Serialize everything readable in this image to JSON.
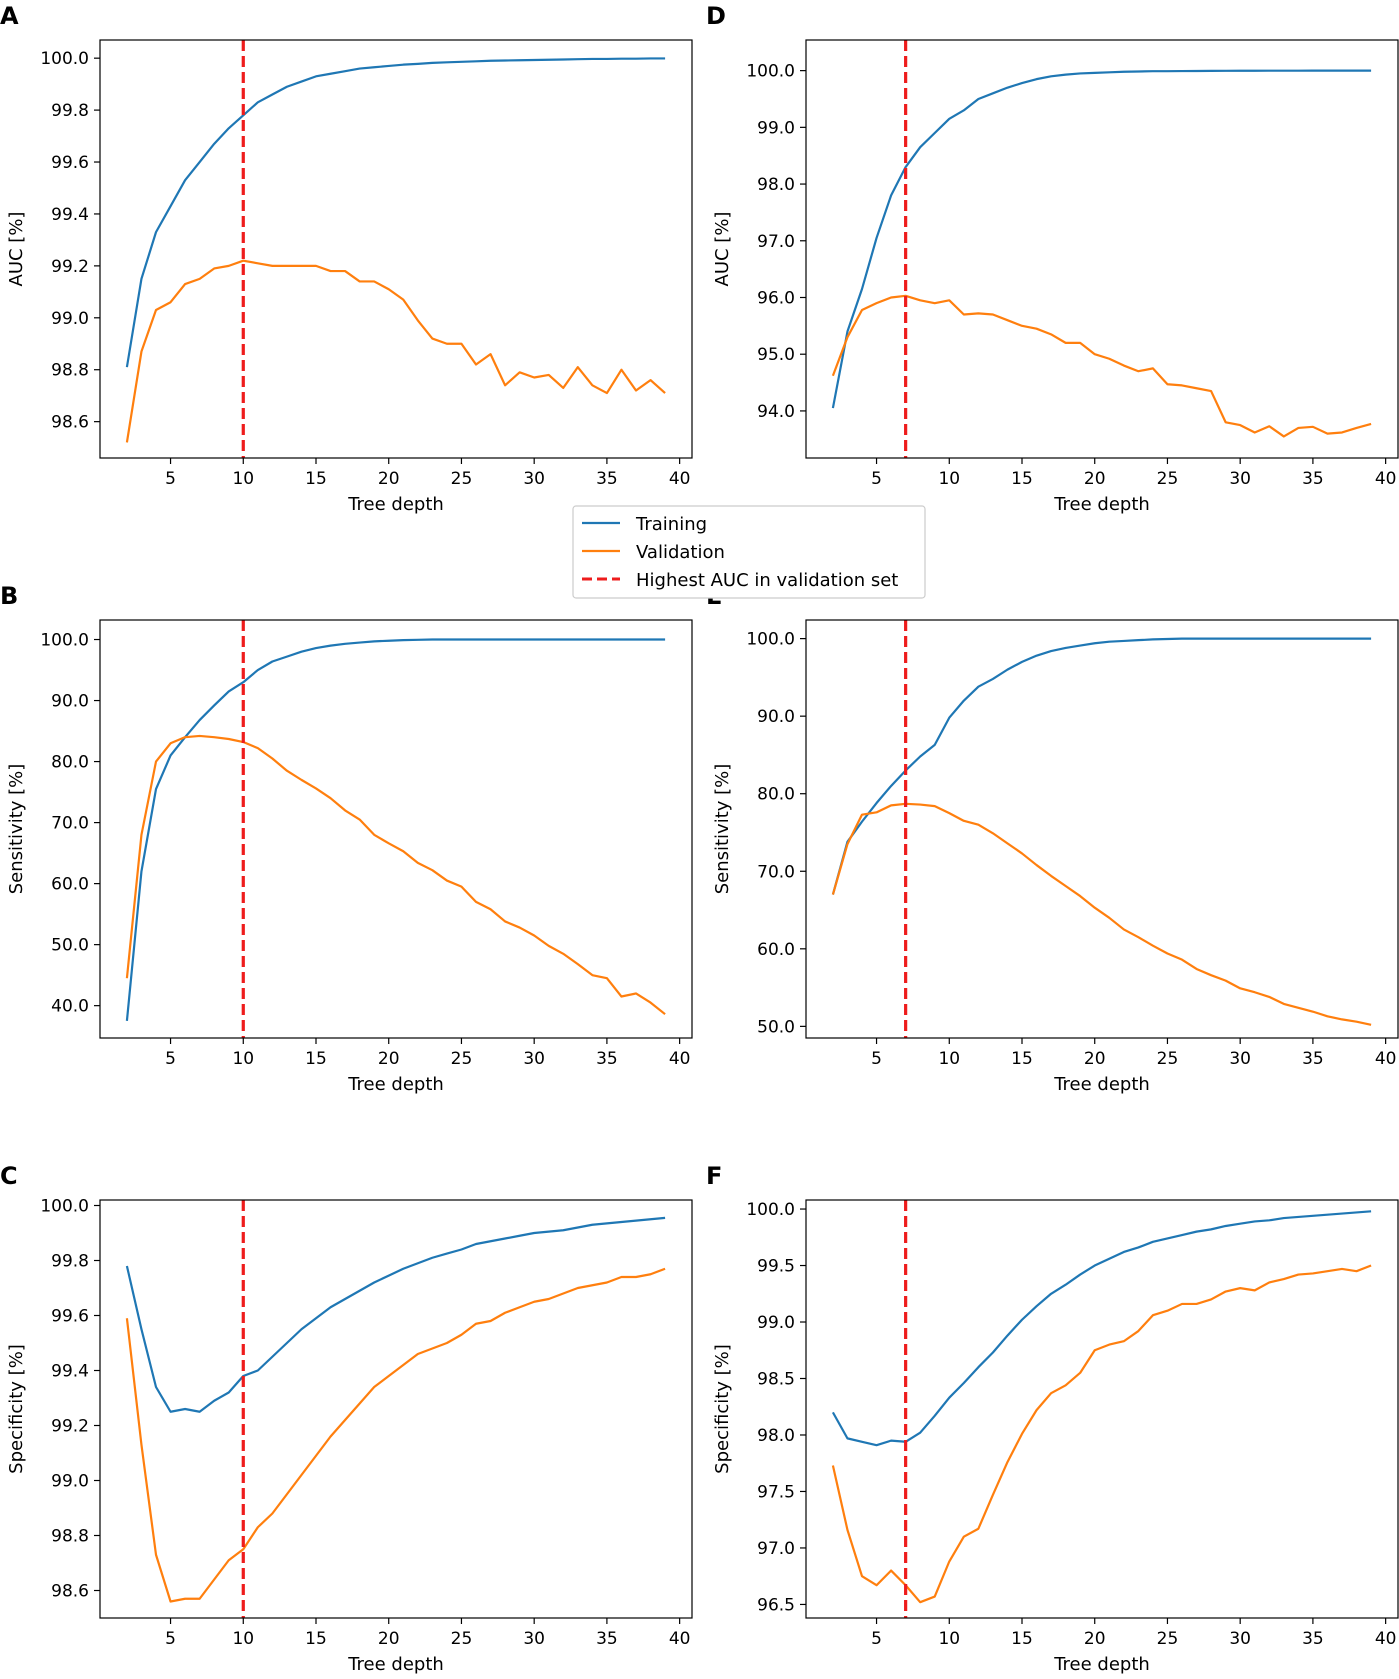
{
  "legend": {
    "placement": "center",
    "entries": [
      {
        "label": "Training",
        "color": "#1f77b4",
        "style": "solid"
      },
      {
        "label": "Validation",
        "color": "#ff7f0e",
        "style": "solid"
      },
      {
        "label": "Highest AUC in validation set",
        "color": "#ee1c1c",
        "style": "dashed"
      }
    ]
  },
  "chart_data": [
    {
      "panel": "A",
      "type": "line",
      "xlabel": "Tree depth",
      "ylabel": "AUC [%]",
      "xlim": [
        0.15,
        40.85
      ],
      "ylim": [
        98.46,
        100.07
      ],
      "xticks": [
        5,
        10,
        15,
        20,
        25,
        30,
        35,
        40
      ],
      "yticks": [
        98.6,
        98.8,
        99.0,
        99.2,
        99.4,
        99.6,
        99.8,
        100.0
      ],
      "ytick_labels": [
        "98.6",
        "98.8",
        "99.0",
        "99.2",
        "99.4",
        "99.6",
        "99.8",
        "100.0"
      ],
      "vline": 10,
      "x": [
        2,
        3,
        4,
        5,
        6,
        7,
        8,
        9,
        10,
        11,
        12,
        13,
        14,
        15,
        16,
        17,
        18,
        19,
        20,
        21,
        22,
        23,
        24,
        25,
        26,
        27,
        28,
        29,
        30,
        31,
        32,
        33,
        34,
        35,
        36,
        37,
        38,
        39
      ],
      "series": [
        {
          "name": "Training",
          "values": [
            98.81,
            99.15,
            99.33,
            99.43,
            99.53,
            99.6,
            99.67,
            99.73,
            99.78,
            99.83,
            99.86,
            99.89,
            99.91,
            99.93,
            99.94,
            99.95,
            99.96,
            99.965,
            99.97,
            99.975,
            99.978,
            99.982,
            99.984,
            99.986,
            99.988,
            99.99,
            99.991,
            99.992,
            99.993,
            99.994,
            99.995,
            99.996,
            99.997,
            99.997,
            99.998,
            99.998,
            99.999,
            99.999
          ]
        },
        {
          "name": "Validation",
          "values": [
            98.52,
            98.87,
            99.03,
            99.06,
            99.13,
            99.15,
            99.19,
            99.2,
            99.22,
            99.21,
            99.2,
            99.2,
            99.2,
            99.2,
            99.18,
            99.18,
            99.14,
            99.14,
            99.11,
            99.07,
            98.99,
            98.92,
            98.9,
            98.9,
            98.82,
            98.86,
            98.74,
            98.79,
            98.77,
            98.78,
            98.73,
            98.81,
            98.74,
            98.71,
            98.8,
            98.72,
            98.76,
            98.71
          ]
        }
      ]
    },
    {
      "panel": "B",
      "type": "line",
      "xlabel": "Tree depth",
      "ylabel": "Sensitivity [%]",
      "xlim": [
        0.15,
        40.85
      ],
      "ylim": [
        34.7,
        103.2
      ],
      "xticks": [
        5,
        10,
        15,
        20,
        25,
        30,
        35,
        40
      ],
      "yticks": [
        40,
        50,
        60,
        70,
        80,
        90,
        100
      ],
      "ytick_labels": [
        "40.0",
        "50.0",
        "60.0",
        "70.0",
        "80.0",
        "90.0",
        "100.0"
      ],
      "vline": 10,
      "x": [
        2,
        3,
        4,
        5,
        6,
        7,
        8,
        9,
        10,
        11,
        12,
        13,
        14,
        15,
        16,
        17,
        18,
        19,
        20,
        21,
        22,
        23,
        24,
        25,
        26,
        27,
        28,
        29,
        30,
        31,
        32,
        33,
        34,
        35,
        36,
        37,
        38,
        39
      ],
      "series": [
        {
          "name": "Training",
          "values": [
            37.5,
            62.0,
            75.5,
            81.0,
            84.0,
            86.8,
            89.2,
            91.5,
            93.0,
            95.0,
            96.4,
            97.2,
            98.0,
            98.6,
            99.0,
            99.3,
            99.5,
            99.7,
            99.8,
            99.9,
            99.95,
            100,
            100,
            100,
            100,
            100,
            100,
            100,
            100,
            100,
            100,
            100,
            100,
            100,
            100,
            100,
            100,
            100
          ]
        },
        {
          "name": "Validation",
          "values": [
            44.5,
            68.0,
            80.0,
            83.0,
            84.0,
            84.2,
            84.0,
            83.7,
            83.2,
            82.2,
            80.5,
            78.5,
            77.0,
            75.6,
            74.0,
            72.0,
            70.5,
            68.0,
            66.6,
            65.3,
            63.4,
            62.2,
            60.5,
            59.5,
            57.0,
            55.8,
            53.8,
            52.8,
            51.5,
            49.8,
            48.5,
            46.8,
            45.0,
            44.5,
            41.5,
            42.0,
            40.5,
            38.6
          ]
        }
      ]
    },
    {
      "panel": "C",
      "type": "line",
      "xlabel": "Tree depth",
      "ylabel": "Specificity [%]",
      "xlim": [
        0.15,
        40.85
      ],
      "ylim": [
        98.5,
        100.02
      ],
      "xticks": [
        5,
        10,
        15,
        20,
        25,
        30,
        35,
        40
      ],
      "yticks": [
        98.6,
        98.8,
        99.0,
        99.2,
        99.4,
        99.6,
        99.8,
        100.0
      ],
      "ytick_labels": [
        "98.6",
        "98.8",
        "99.0",
        "99.2",
        "99.4",
        "99.6",
        "99.8",
        "100.0"
      ],
      "vline": 10,
      "x": [
        2,
        3,
        4,
        5,
        6,
        7,
        8,
        9,
        10,
        11,
        12,
        13,
        14,
        15,
        16,
        17,
        18,
        19,
        20,
        21,
        22,
        23,
        24,
        25,
        26,
        27,
        28,
        29,
        30,
        31,
        32,
        33,
        34,
        35,
        36,
        37,
        38,
        39
      ],
      "series": [
        {
          "name": "Training",
          "values": [
            99.78,
            99.55,
            99.34,
            99.25,
            99.26,
            99.25,
            99.29,
            99.32,
            99.38,
            99.4,
            99.45,
            99.5,
            99.55,
            99.59,
            99.63,
            99.66,
            99.69,
            99.72,
            99.745,
            99.77,
            99.79,
            99.81,
            99.825,
            99.84,
            99.86,
            99.87,
            99.88,
            99.89,
            99.9,
            99.905,
            99.91,
            99.92,
            99.93,
            99.935,
            99.94,
            99.945,
            99.95,
            99.955
          ]
        },
        {
          "name": "Validation",
          "values": [
            99.59,
            99.13,
            98.73,
            98.56,
            98.57,
            98.57,
            98.64,
            98.71,
            98.75,
            98.83,
            98.88,
            98.95,
            99.02,
            99.09,
            99.16,
            99.22,
            99.28,
            99.34,
            99.38,
            99.42,
            99.46,
            99.48,
            99.5,
            99.53,
            99.57,
            99.58,
            99.61,
            99.63,
            99.65,
            99.66,
            99.68,
            99.7,
            99.71,
            99.72,
            99.74,
            99.74,
            99.75,
            99.77
          ]
        }
      ]
    },
    {
      "panel": "D",
      "type": "line",
      "xlabel": "Tree depth",
      "ylabel": "AUC [%]",
      "xlim": [
        0.15,
        40.85
      ],
      "ylim": [
        93.17,
        100.54
      ],
      "xticks": [
        5,
        10,
        15,
        20,
        25,
        30,
        35,
        40
      ],
      "yticks": [
        94,
        95,
        96,
        97,
        98,
        99,
        100
      ],
      "ytick_labels": [
        "94.0",
        "95.0",
        "96.0",
        "97.0",
        "98.0",
        "99.0",
        "100.0"
      ],
      "vline": 7,
      "x": [
        2,
        3,
        4,
        5,
        6,
        7,
        8,
        9,
        10,
        11,
        12,
        13,
        14,
        15,
        16,
        17,
        18,
        19,
        20,
        21,
        22,
        23,
        24,
        25,
        26,
        27,
        28,
        29,
        30,
        31,
        32,
        33,
        34,
        35,
        36,
        37,
        38,
        39
      ],
      "series": [
        {
          "name": "Training",
          "values": [
            94.05,
            95.4,
            96.15,
            97.05,
            97.8,
            98.3,
            98.65,
            98.9,
            99.15,
            99.3,
            99.5,
            99.6,
            99.7,
            99.78,
            99.85,
            99.9,
            99.93,
            99.95,
            99.96,
            99.97,
            99.98,
            99.985,
            99.99,
            99.99,
            99.992,
            99.994,
            99.996,
            99.997,
            99.998,
            99.998,
            99.999,
            99.999,
            99.999,
            100,
            100,
            100,
            100,
            100
          ]
        },
        {
          "name": "Validation",
          "values": [
            94.62,
            95.3,
            95.78,
            95.9,
            96.0,
            96.03,
            95.95,
            95.9,
            95.95,
            95.7,
            95.72,
            95.7,
            95.6,
            95.5,
            95.45,
            95.35,
            95.2,
            95.2,
            95.0,
            94.92,
            94.8,
            94.7,
            94.75,
            94.47,
            94.45,
            94.4,
            94.35,
            93.8,
            93.75,
            93.62,
            93.73,
            93.55,
            93.7,
            93.72,
            93.6,
            93.62,
            93.7,
            93.77
          ]
        }
      ]
    },
    {
      "panel": "E",
      "type": "line",
      "xlabel": "Tree depth",
      "ylabel": "Sensitivity [%]",
      "xlim": [
        0.15,
        40.85
      ],
      "ylim": [
        48.5,
        102.4
      ],
      "xticks": [
        5,
        10,
        15,
        20,
        25,
        30,
        35,
        40
      ],
      "yticks": [
        50,
        60,
        70,
        80,
        90,
        100
      ],
      "ytick_labels": [
        "50.0",
        "60.0",
        "70.0",
        "80.0",
        "90.0",
        "100.0"
      ],
      "vline": 7,
      "x": [
        2,
        3,
        4,
        5,
        6,
        7,
        8,
        9,
        10,
        11,
        12,
        13,
        14,
        15,
        16,
        17,
        18,
        19,
        20,
        21,
        22,
        23,
        24,
        25,
        26,
        27,
        28,
        29,
        30,
        31,
        32,
        33,
        34,
        35,
        36,
        37,
        38,
        39
      ],
      "series": [
        {
          "name": "Training",
          "values": [
            67.0,
            73.8,
            76.4,
            78.8,
            81.0,
            83.0,
            84.8,
            86.3,
            89.8,
            92.0,
            93.8,
            94.8,
            96.0,
            97.0,
            97.8,
            98.4,
            98.8,
            99.1,
            99.4,
            99.6,
            99.7,
            99.8,
            99.9,
            99.95,
            100,
            100,
            100,
            100,
            100,
            100,
            100,
            100,
            100,
            100,
            100,
            100,
            100,
            100
          ]
        },
        {
          "name": "Validation",
          "values": [
            67.0,
            73.5,
            77.3,
            77.6,
            78.5,
            78.7,
            78.6,
            78.4,
            77.5,
            76.5,
            76.0,
            74.9,
            73.6,
            72.3,
            70.8,
            69.4,
            68.1,
            66.8,
            65.3,
            64.0,
            62.5,
            61.5,
            60.4,
            59.4,
            58.6,
            57.4,
            56.6,
            55.9,
            54.9,
            54.4,
            53.8,
            52.9,
            52.4,
            51.9,
            51.3,
            50.9,
            50.6,
            50.2
          ]
        }
      ]
    },
    {
      "panel": "F",
      "type": "line",
      "xlabel": "Tree depth",
      "ylabel": "Specificity [%]",
      "xlim": [
        0.15,
        40.85
      ],
      "ylim": [
        96.38,
        100.08
      ],
      "xticks": [
        5,
        10,
        15,
        20,
        25,
        30,
        35,
        40
      ],
      "yticks": [
        96.5,
        97.0,
        97.5,
        98.0,
        98.5,
        99.0,
        99.5,
        100.0
      ],
      "ytick_labels": [
        "96.5",
        "97.0",
        "97.5",
        "98.0",
        "98.5",
        "99.0",
        "99.5",
        "100.0"
      ],
      "vline": 7,
      "x": [
        2,
        3,
        4,
        5,
        6,
        7,
        8,
        9,
        10,
        11,
        12,
        13,
        14,
        15,
        16,
        17,
        18,
        19,
        20,
        21,
        22,
        23,
        24,
        25,
        26,
        27,
        28,
        29,
        30,
        31,
        32,
        33,
        34,
        35,
        36,
        37,
        38,
        39
      ],
      "series": [
        {
          "name": "Training",
          "values": [
            98.2,
            97.97,
            97.94,
            97.91,
            97.95,
            97.94,
            98.02,
            98.17,
            98.33,
            98.46,
            98.6,
            98.73,
            98.88,
            99.02,
            99.14,
            99.25,
            99.33,
            99.42,
            99.5,
            99.56,
            99.62,
            99.66,
            99.71,
            99.74,
            99.77,
            99.8,
            99.82,
            99.85,
            99.87,
            99.89,
            99.9,
            99.92,
            99.93,
            99.94,
            99.95,
            99.96,
            99.97,
            99.98
          ]
        },
        {
          "name": "Validation",
          "values": [
            97.73,
            97.16,
            96.75,
            96.67,
            96.8,
            96.67,
            96.52,
            96.57,
            96.88,
            97.1,
            97.17,
            97.47,
            97.76,
            98.01,
            98.22,
            98.37,
            98.44,
            98.55,
            98.75,
            98.8,
            98.83,
            98.92,
            99.06,
            99.1,
            99.16,
            99.16,
            99.2,
            99.27,
            99.3,
            99.28,
            99.35,
            99.38,
            99.42,
            99.43,
            99.45,
            99.47,
            99.45,
            99.5
          ]
        }
      ]
    }
  ]
}
